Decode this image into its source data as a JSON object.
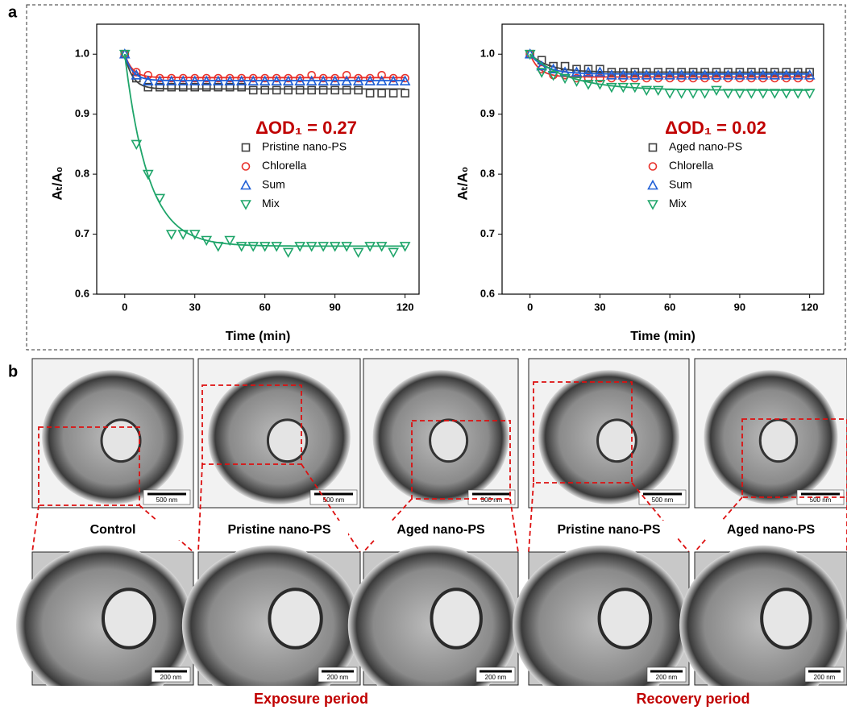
{
  "panel_labels": [
    "a",
    "b"
  ],
  "chart_data": [
    {
      "type": "scatter",
      "annotation": "ΔOD₁ = 0.27",
      "x_label": "Time (min)",
      "y_label": "Aₜ/A₀",
      "x": [
        0,
        5,
        10,
        15,
        20,
        25,
        30,
        35,
        40,
        45,
        50,
        55,
        60,
        65,
        70,
        75,
        80,
        85,
        90,
        95,
        100,
        105,
        110,
        115,
        120
      ],
      "xlim": [
        -12,
        126
      ],
      "xticks": [
        0,
        30,
        60,
        90,
        120
      ],
      "ylim": [
        0.6,
        1.05
      ],
      "yticks": [
        {
          "value": 0.6,
          "label": "0.6"
        },
        {
          "value": 0.7,
          "label": "0.7"
        },
        {
          "value": 0.8,
          "label": "0.8"
        },
        {
          "value": 0.9,
          "label": "0.9"
        },
        {
          "value": 1.0,
          "label": "1.0"
        }
      ],
      "series": [
        {
          "name": "Pristine nano-PS",
          "color": "#404040",
          "marker": "square",
          "fit": {
            "plateau": 0.942,
            "rate": 0.3
          },
          "values": [
            1.0,
            0.96,
            0.945,
            0.945,
            0.945,
            0.945,
            0.945,
            0.945,
            0.945,
            0.945,
            0.945,
            0.94,
            0.94,
            0.94,
            0.94,
            0.94,
            0.94,
            0.94,
            0.94,
            0.94,
            0.94,
            0.935,
            0.935,
            0.935,
            0.935
          ]
        },
        {
          "name": "Chlorella",
          "color": "#e8302a",
          "marker": "circle",
          "fit": {
            "plateau": 0.961,
            "rate": 0.3
          },
          "values": [
            1.0,
            0.97,
            0.965,
            0.96,
            0.96,
            0.96,
            0.96,
            0.96,
            0.96,
            0.96,
            0.96,
            0.96,
            0.96,
            0.96,
            0.96,
            0.96,
            0.965,
            0.96,
            0.96,
            0.965,
            0.96,
            0.96,
            0.965,
            0.96,
            0.96
          ]
        },
        {
          "name": "Sum",
          "color": "#1f5fd6",
          "marker": "triangle-up",
          "fit": {
            "plateau": 0.956,
            "rate": 0.3
          },
          "values": [
            1.0,
            0.965,
            0.955,
            0.955,
            0.955,
            0.955,
            0.955,
            0.955,
            0.955,
            0.955,
            0.955,
            0.955,
            0.955,
            0.955,
            0.955,
            0.955,
            0.955,
            0.955,
            0.955,
            0.955,
            0.955,
            0.955,
            0.955,
            0.955,
            0.955
          ]
        },
        {
          "name": "Mix",
          "color": "#1fa56a",
          "marker": "triangle-down",
          "fit": {
            "plateau": 0.68,
            "rate": 0.1
          },
          "values": [
            1.0,
            0.85,
            0.8,
            0.76,
            0.7,
            0.7,
            0.7,
            0.69,
            0.68,
            0.69,
            0.68,
            0.68,
            0.68,
            0.68,
            0.67,
            0.68,
            0.68,
            0.68,
            0.68,
            0.68,
            0.67,
            0.68,
            0.68,
            0.67,
            0.68
          ]
        }
      ]
    },
    {
      "type": "scatter",
      "annotation": "ΔOD₁ = 0.02",
      "x_label": "Time (min)",
      "y_label": "Aₜ/A₀",
      "x": [
        0,
        5,
        10,
        15,
        20,
        25,
        30,
        35,
        40,
        45,
        50,
        55,
        60,
        65,
        70,
        75,
        80,
        85,
        90,
        95,
        100,
        105,
        110,
        115,
        120
      ],
      "xlim": [
        -12,
        126
      ],
      "xticks": [
        0,
        30,
        60,
        90,
        120
      ],
      "ylim": [
        0.6,
        1.05
      ],
      "yticks": [
        {
          "value": 0.6,
          "label": "0.6"
        },
        {
          "value": 0.7,
          "label": "0.7"
        },
        {
          "value": 0.8,
          "label": "0.8"
        },
        {
          "value": 0.9,
          "label": "0.9"
        },
        {
          "value": 1.0,
          "label": "1.0"
        }
      ],
      "series": [
        {
          "name": "Aged nano-PS",
          "color": "#404040",
          "marker": "square",
          "fit": {
            "plateau": 0.97,
            "rate": 0.12
          },
          "values": [
            1.0,
            0.99,
            0.98,
            0.98,
            0.975,
            0.975,
            0.975,
            0.97,
            0.97,
            0.97,
            0.97,
            0.97,
            0.97,
            0.97,
            0.97,
            0.97,
            0.97,
            0.97,
            0.97,
            0.97,
            0.97,
            0.97,
            0.97,
            0.97,
            0.97
          ]
        },
        {
          "name": "Chlorella",
          "color": "#e8302a",
          "marker": "circle",
          "fit": {
            "plateau": 0.962,
            "rate": 0.25
          },
          "values": [
            1.0,
            0.975,
            0.965,
            0.965,
            0.96,
            0.96,
            0.96,
            0.96,
            0.96,
            0.96,
            0.96,
            0.96,
            0.96,
            0.96,
            0.96,
            0.96,
            0.96,
            0.96,
            0.96,
            0.96,
            0.96,
            0.96,
            0.96,
            0.96,
            0.96
          ]
        },
        {
          "name": "Sum",
          "color": "#1f5fd6",
          "marker": "triangle-up",
          "fit": {
            "plateau": 0.967,
            "rate": 0.15
          },
          "values": [
            1.0,
            0.98,
            0.975,
            0.97,
            0.97,
            0.97,
            0.97,
            0.965,
            0.965,
            0.965,
            0.965,
            0.965,
            0.965,
            0.965,
            0.965,
            0.965,
            0.965,
            0.965,
            0.965,
            0.965,
            0.965,
            0.965,
            0.965,
            0.965,
            0.965
          ]
        },
        {
          "name": "Mix",
          "color": "#1fa56a",
          "marker": "triangle-down",
          "fit": {
            "plateau": 0.94,
            "rate": 0.06
          },
          "values": [
            1.0,
            0.97,
            0.965,
            0.96,
            0.955,
            0.95,
            0.95,
            0.945,
            0.945,
            0.945,
            0.94,
            0.94,
            0.935,
            0.935,
            0.935,
            0.935,
            0.94,
            0.935,
            0.935,
            0.935,
            0.935,
            0.935,
            0.935,
            0.935,
            0.935
          ]
        }
      ]
    }
  ],
  "panel_b": {
    "images": [
      {
        "label": "Control",
        "scale_bar": "500 nm",
        "zoom_scale_bar": "200 nm"
      },
      {
        "label": "Pristine nano-PS",
        "scale_bar": "500 nm",
        "zoom_scale_bar": "200 nm"
      },
      {
        "label": "Aged nano-PS",
        "scale_bar": "500 nm",
        "zoom_scale_bar": "200 nm"
      },
      {
        "label": "Pristine nano-PS",
        "scale_bar": "500 nm",
        "zoom_scale_bar": "200 nm"
      },
      {
        "label": "Aged nano-PS",
        "scale_bar": "500 nm",
        "zoom_scale_bar": "200 nm"
      }
    ],
    "periods": [
      "Exposure period",
      "Recovery period"
    ]
  }
}
